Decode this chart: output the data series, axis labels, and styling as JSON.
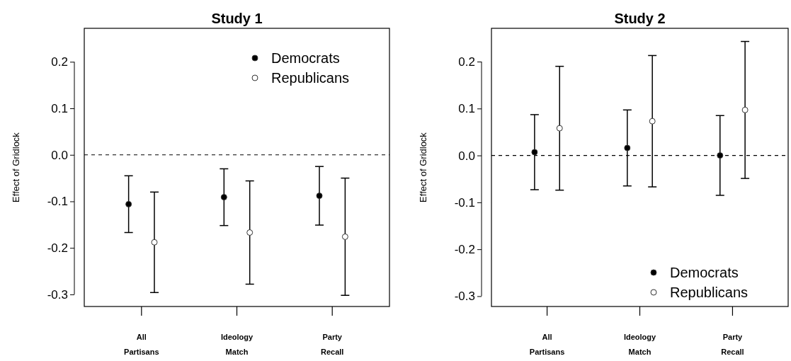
{
  "chart_data": [
    {
      "type": "scatter",
      "title": "Study 1",
      "ylabel": "Effect of Gridlock",
      "categories": [
        "All\nPartisans",
        "Ideology\nMatch",
        "Party\nRecall"
      ],
      "series": [
        {
          "name": "Democrats",
          "color": "#000000",
          "values": [
            -0.106,
            -0.091,
            -0.088
          ],
          "errors": [
            0.061,
            0.061,
            0.063
          ]
        },
        {
          "name": "Republicans",
          "color": "#ffffff",
          "values": [
            -0.188,
            -0.167,
            -0.176
          ],
          "errors": [
            0.108,
            0.111,
            0.126
          ]
        }
      ],
      "ylim": [
        -0.326,
        0.272
      ],
      "yticks": [
        {
          "value": -0.3,
          "label": "-0.3"
        },
        {
          "value": -0.2,
          "label": "-0.2"
        },
        {
          "value": -0.1,
          "label": "-0.1"
        },
        {
          "value": 0,
          "label": "0.0"
        },
        {
          "value": 0.1,
          "label": "0.1"
        },
        {
          "value": 0.2,
          "label": "0.2"
        }
      ],
      "ref_lines": [
        {
          "axis": "y",
          "value": 0,
          "line_style": "dashed"
        }
      ],
      "marker": "circle",
      "legend": "top right",
      "grid": false
    },
    {
      "type": "scatter",
      "title": "Study 2",
      "ylabel": "Effect of Gridlock",
      "categories": [
        "All\nPartisans",
        "Ideology\nMatch",
        "Party\nRecall"
      ],
      "series": [
        {
          "name": "Democrats",
          "color": "#000000",
          "values": [
            0.007,
            0.016,
            0.0
          ],
          "errors": [
            0.08,
            0.081,
            0.085
          ]
        },
        {
          "name": "Republicans",
          "color": "#ffffff",
          "values": [
            0.058,
            0.073,
            0.097
          ],
          "errors": [
            0.132,
            0.14,
            0.146
          ]
        }
      ],
      "ylim": [
        -0.322,
        0.271
      ],
      "yticks": [
        {
          "value": -0.3,
          "label": "-0.3"
        },
        {
          "value": -0.2,
          "label": "-0.2"
        },
        {
          "value": -0.1,
          "label": "-0.1"
        },
        {
          "value": 0,
          "label": "0.0"
        },
        {
          "value": 0.1,
          "label": "0.1"
        },
        {
          "value": 0.2,
          "label": "0.2"
        }
      ],
      "ref_lines": [
        {
          "axis": "y",
          "value": 0,
          "line_style": "dashed"
        }
      ],
      "marker": "circle",
      "legend": "bottom right",
      "grid": false
    }
  ]
}
